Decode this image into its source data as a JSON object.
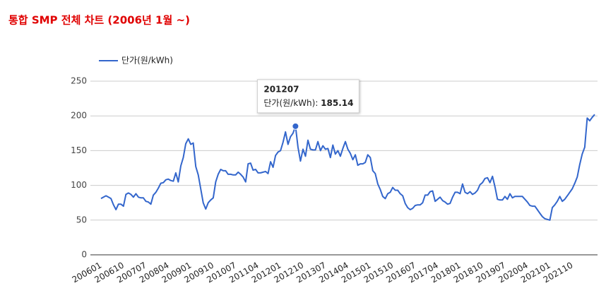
{
  "chart_data": {
    "type": "line",
    "title": "통합 SMP 전체 차트 (2006년 1월 ~)",
    "categories": [
      "200601",
      null,
      null,
      null,
      null,
      null,
      null,
      null,
      null,
      "200610",
      null,
      null,
      null,
      null,
      null,
      null,
      null,
      null,
      "200707",
      null,
      null,
      null,
      null,
      null,
      null,
      null,
      null,
      "200804",
      null,
      null,
      null,
      null,
      null,
      null,
      null,
      null,
      "200901",
      null,
      null,
      null,
      null,
      null,
      null,
      null,
      null,
      "200910",
      null,
      null,
      null,
      null,
      null,
      null,
      null,
      null,
      "201007",
      null,
      null,
      null,
      null,
      null,
      null,
      null,
      null,
      "201104",
      null,
      null,
      null,
      null,
      null,
      null,
      null,
      null,
      "201201",
      null,
      null,
      null,
      null,
      null,
      null,
      null,
      null,
      "201210",
      null,
      null,
      null,
      null,
      null,
      null,
      null,
      null,
      "201307",
      null,
      null,
      null,
      null,
      null,
      null,
      null,
      null,
      "201404",
      null,
      null,
      null,
      null,
      null,
      null,
      null,
      null,
      "201501",
      null,
      null,
      null,
      null,
      null,
      null,
      null,
      null,
      "201510",
      null,
      null,
      null,
      null,
      null,
      null,
      null,
      null,
      "201607",
      null,
      null,
      null,
      null,
      null,
      null,
      null,
      null,
      "201704",
      null,
      null,
      null,
      null,
      null,
      null,
      null,
      null,
      "201801",
      null,
      null,
      null,
      null,
      null,
      null,
      null,
      null,
      "201810",
      null,
      null,
      null,
      null,
      null,
      null,
      null,
      null,
      "201907",
      null,
      null,
      null,
      null,
      null,
      null,
      null,
      null,
      "202004",
      null,
      null,
      null,
      null,
      null,
      null,
      null,
      null,
      "202101",
      null,
      null,
      null,
      null,
      null,
      null,
      null,
      null,
      "202110",
      null,
      null,
      null,
      null,
      null,
      null,
      null,
      null,
      null
    ],
    "series": [
      {
        "name": "단가(원/kWh)",
        "color": "#3366cc",
        "values": [
          81,
          83,
          85,
          83,
          81,
          72,
          65,
          73,
          73,
          70,
          87,
          89,
          87,
          83,
          88,
          83,
          82,
          82,
          77,
          76,
          73,
          86,
          90,
          96,
          103,
          104,
          108,
          109,
          107,
          106,
          118,
          105,
          128,
          140,
          160,
          167,
          159,
          161,
          127,
          115,
          95,
          75,
          66,
          75,
          79,
          82,
          105,
          116,
          123,
          121,
          121,
          116,
          116,
          115,
          115,
          119,
          116,
          112,
          105,
          131,
          132,
          122,
          123,
          118,
          118,
          119,
          120,
          117,
          134,
          126,
          143,
          148,
          150,
          162,
          177,
          159,
          170,
          175,
          185.14,
          155,
          135,
          152,
          142,
          165,
          152,
          151,
          151,
          163,
          150,
          157,
          152,
          153,
          140,
          158,
          145,
          150,
          142,
          153,
          163,
          152,
          146,
          137,
          144,
          129,
          131,
          131,
          133,
          144,
          140,
          121,
          117,
          102,
          94,
          84,
          81,
          88,
          90,
          97,
          93,
          93,
          88,
          85,
          74,
          68,
          65,
          67,
          71,
          72,
          72,
          75,
          86,
          86,
          91,
          92,
          77,
          80,
          83,
          78,
          76,
          73,
          74,
          83,
          90,
          90,
          88,
          102,
          90,
          88,
          91,
          87,
          89,
          93,
          101,
          104,
          110,
          111,
          104,
          113,
          98,
          80,
          79,
          79,
          84,
          80,
          88,
          82,
          84,
          84,
          84,
          84,
          80,
          76,
          71,
          70,
          70,
          65,
          60,
          55,
          52,
          51,
          50,
          68,
          72,
          77,
          84,
          77,
          80,
          85,
          90,
          95,
          103,
          112,
          130,
          145,
          155,
          197,
          193,
          198,
          202
        ]
      }
    ],
    "ylim": [
      0,
      250
    ],
    "yticks": [
      0,
      50,
      100,
      150,
      200,
      250
    ],
    "grid": true,
    "legend": "top-left",
    "tooltip": {
      "category": "201207",
      "index": 78
    }
  }
}
